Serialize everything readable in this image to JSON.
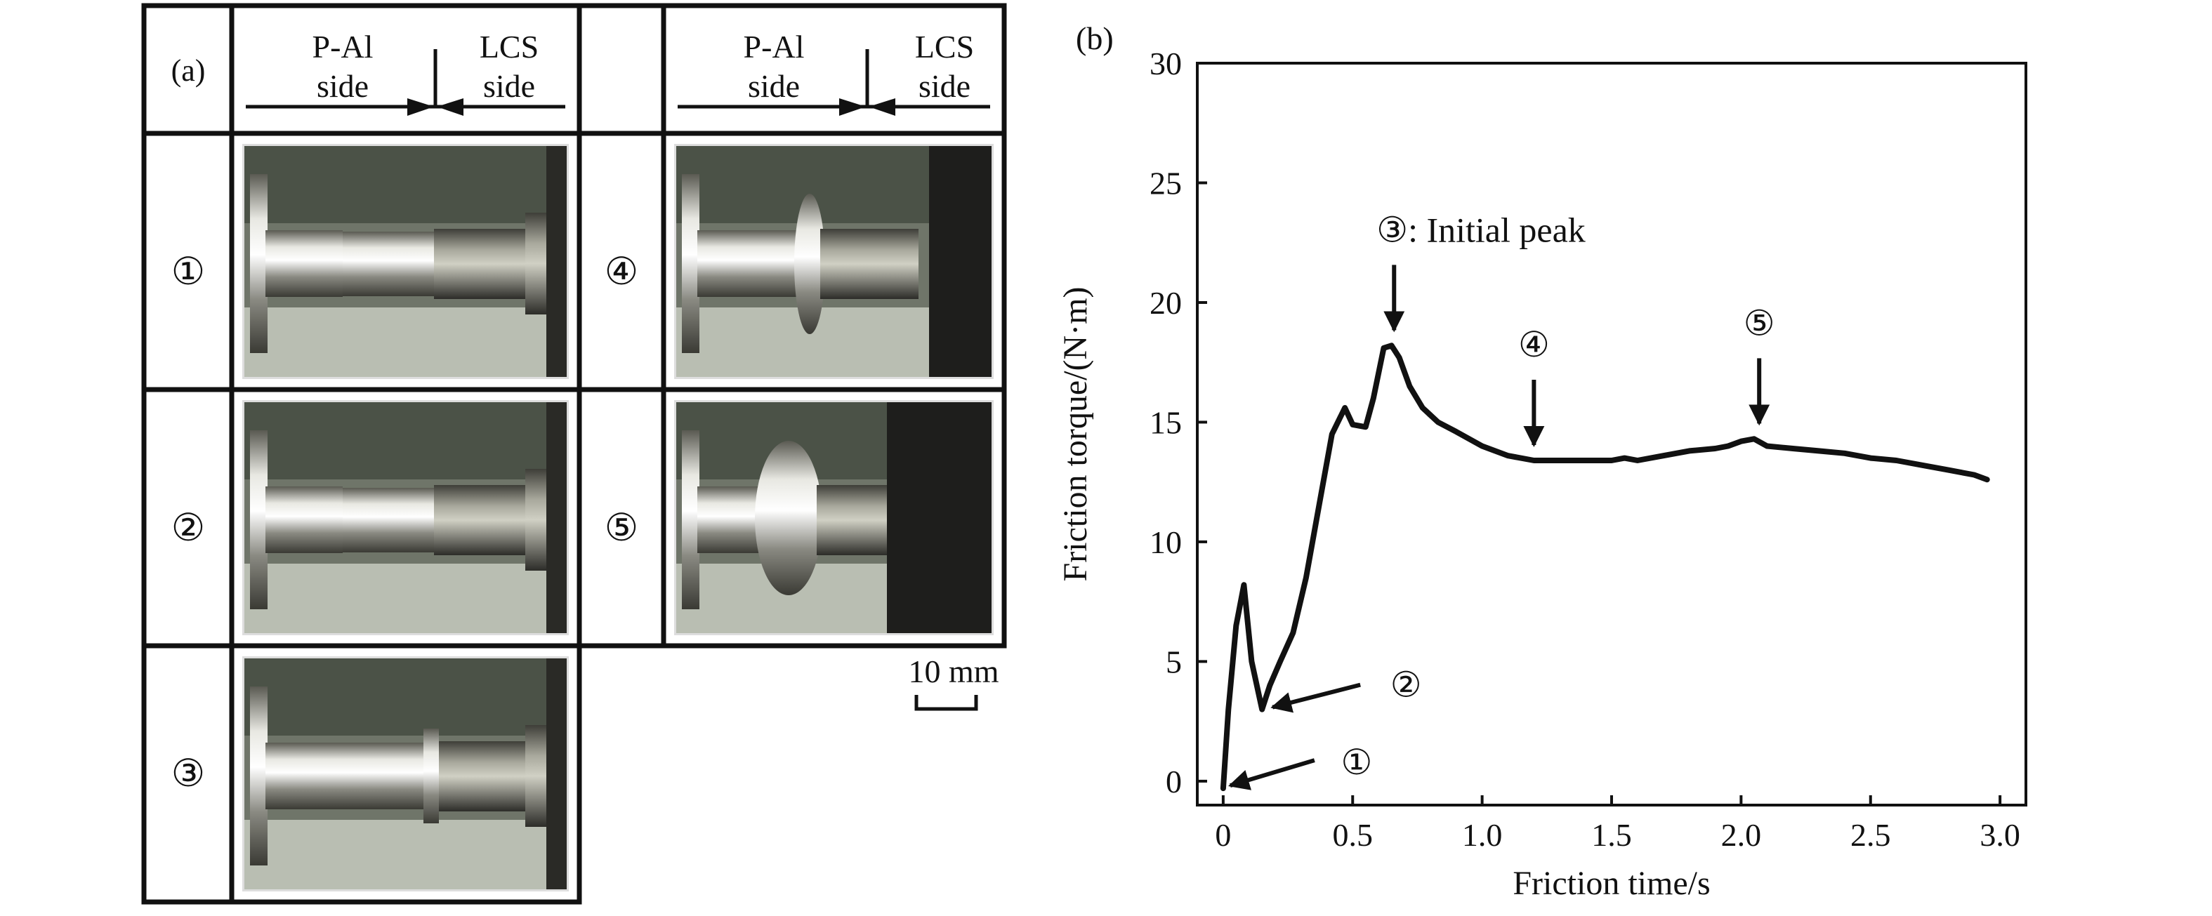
{
  "panel_a": {
    "label": "(a)",
    "header_left": {
      "line1": "P-Al",
      "line2": "side"
    },
    "header_right": {
      "line1": "LCS",
      "line2": "side"
    },
    "stages": [
      "①",
      "②",
      "③",
      "④",
      "⑤"
    ],
    "scale_bar": "10 mm"
  },
  "chart_data": {
    "type": "line",
    "panel_label": "(b)",
    "xlabel": "Friction time/s",
    "ylabel": "Friction torque/(N·m)",
    "xlim": [
      -0.1,
      3.1
    ],
    "ylim": [
      -1,
      30
    ],
    "xticks": [
      0,
      0.5,
      1.0,
      1.5,
      2.0,
      2.5,
      3.0
    ],
    "xtick_labels": [
      "0",
      "0.5",
      "1.0",
      "1.5",
      "2.0",
      "2.5",
      "3.0"
    ],
    "yticks": [
      0,
      5,
      10,
      15,
      20,
      25,
      30
    ],
    "ytick_labels": [
      "0",
      "5",
      "10",
      "15",
      "20",
      "25",
      "30"
    ],
    "grid": false,
    "series": [
      {
        "x": [
          0.0,
          0.02,
          0.05,
          0.08,
          0.11,
          0.15,
          0.18,
          0.22,
          0.27,
          0.32,
          0.37,
          0.42,
          0.47,
          0.5,
          0.55,
          0.58,
          0.62,
          0.65,
          0.68,
          0.72,
          0.77,
          0.83,
          0.9,
          1.0,
          1.1,
          1.2,
          1.3,
          1.4,
          1.5,
          1.55,
          1.6,
          1.7,
          1.8,
          1.9,
          1.95,
          2.0,
          2.05,
          2.1,
          2.2,
          2.3,
          2.4,
          2.5,
          2.6,
          2.7,
          2.8,
          2.9,
          2.95
        ],
        "values": [
          -0.3,
          3.0,
          6.5,
          8.2,
          5.0,
          3.0,
          4.0,
          5.0,
          6.2,
          8.5,
          11.5,
          14.5,
          15.6,
          14.9,
          14.8,
          16.0,
          18.1,
          18.2,
          17.7,
          16.5,
          15.6,
          15.0,
          14.6,
          14.0,
          13.6,
          13.4,
          13.4,
          13.4,
          13.4,
          13.5,
          13.4,
          13.6,
          13.8,
          13.9,
          14.0,
          14.2,
          14.3,
          14.0,
          13.9,
          13.8,
          13.7,
          13.5,
          13.4,
          13.2,
          13.0,
          12.8,
          12.6
        ]
      }
    ],
    "annotations": [
      {
        "text": "①",
        "x": 0.0,
        "y": -0.3
      },
      {
        "text": "②",
        "x": 0.15,
        "y": 3.0
      },
      {
        "text": "③: Initial peak",
        "x": 0.66,
        "y": 18.2
      },
      {
        "text": "④",
        "x": 1.2,
        "y": 13.4
      },
      {
        "text": "⑤",
        "x": 2.07,
        "y": 14.3
      }
    ]
  }
}
